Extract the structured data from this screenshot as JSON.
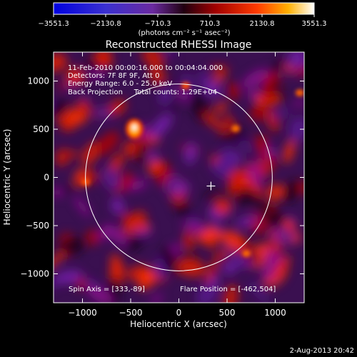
{
  "colorbar": {
    "ticks": [
      "−3551.3",
      "−2130.8",
      "−710.3",
      "710.3",
      "2130.8",
      "3551.3"
    ],
    "unit_label": "(photons cm⁻² s⁻¹ asec⁻²)",
    "range": [
      -3551.3,
      3551.3
    ]
  },
  "plot": {
    "title": "Reconstructed RHESSI Image",
    "info_lines": [
      "11-Feb-2010 00:00:16.000 to 00:04:04.000",
      "Detectors: 7F 8F 9F, Att 0",
      "Energy Range: 6.0 - 25.0 keV",
      "Back Projection     Total counts: 1.29E+04"
    ],
    "spin_axis": "Spin Axis = [333,-89]",
    "flare_position": "Flare Position = [-462,504]",
    "timestamp": "2-Aug-2013 20:42"
  },
  "chart_data": {
    "type": "heatmap",
    "title": "Reconstructed RHESSI Image",
    "xlabel": "Heliocentric X (arcsec)",
    "ylabel": "Heliocentric Y (arcsec)",
    "xlim": [
      -1300,
      1300
    ],
    "ylim": [
      -1300,
      1300
    ],
    "x_ticks": [
      -1000,
      -500,
      0,
      500,
      1000
    ],
    "y_ticks": [
      -1000,
      -500,
      0,
      500,
      1000
    ],
    "x_tick_labels": [
      "−1000",
      "−500",
      "0",
      "500",
      "1000"
    ],
    "y_tick_labels": [
      "−1000",
      "−500",
      "0",
      "500",
      "1000"
    ],
    "solar_limb_radius_arcsec": 969,
    "spin_axis": [
      333,
      -89
    ],
    "flare_position": [
      -462,
      504
    ],
    "colormap": [
      "#000080",
      "#2020ff",
      "#6a2a9a",
      "#1a001a",
      "#8a0000",
      "#ff3000",
      "#ff9a00",
      "#ffffff"
    ]
  }
}
